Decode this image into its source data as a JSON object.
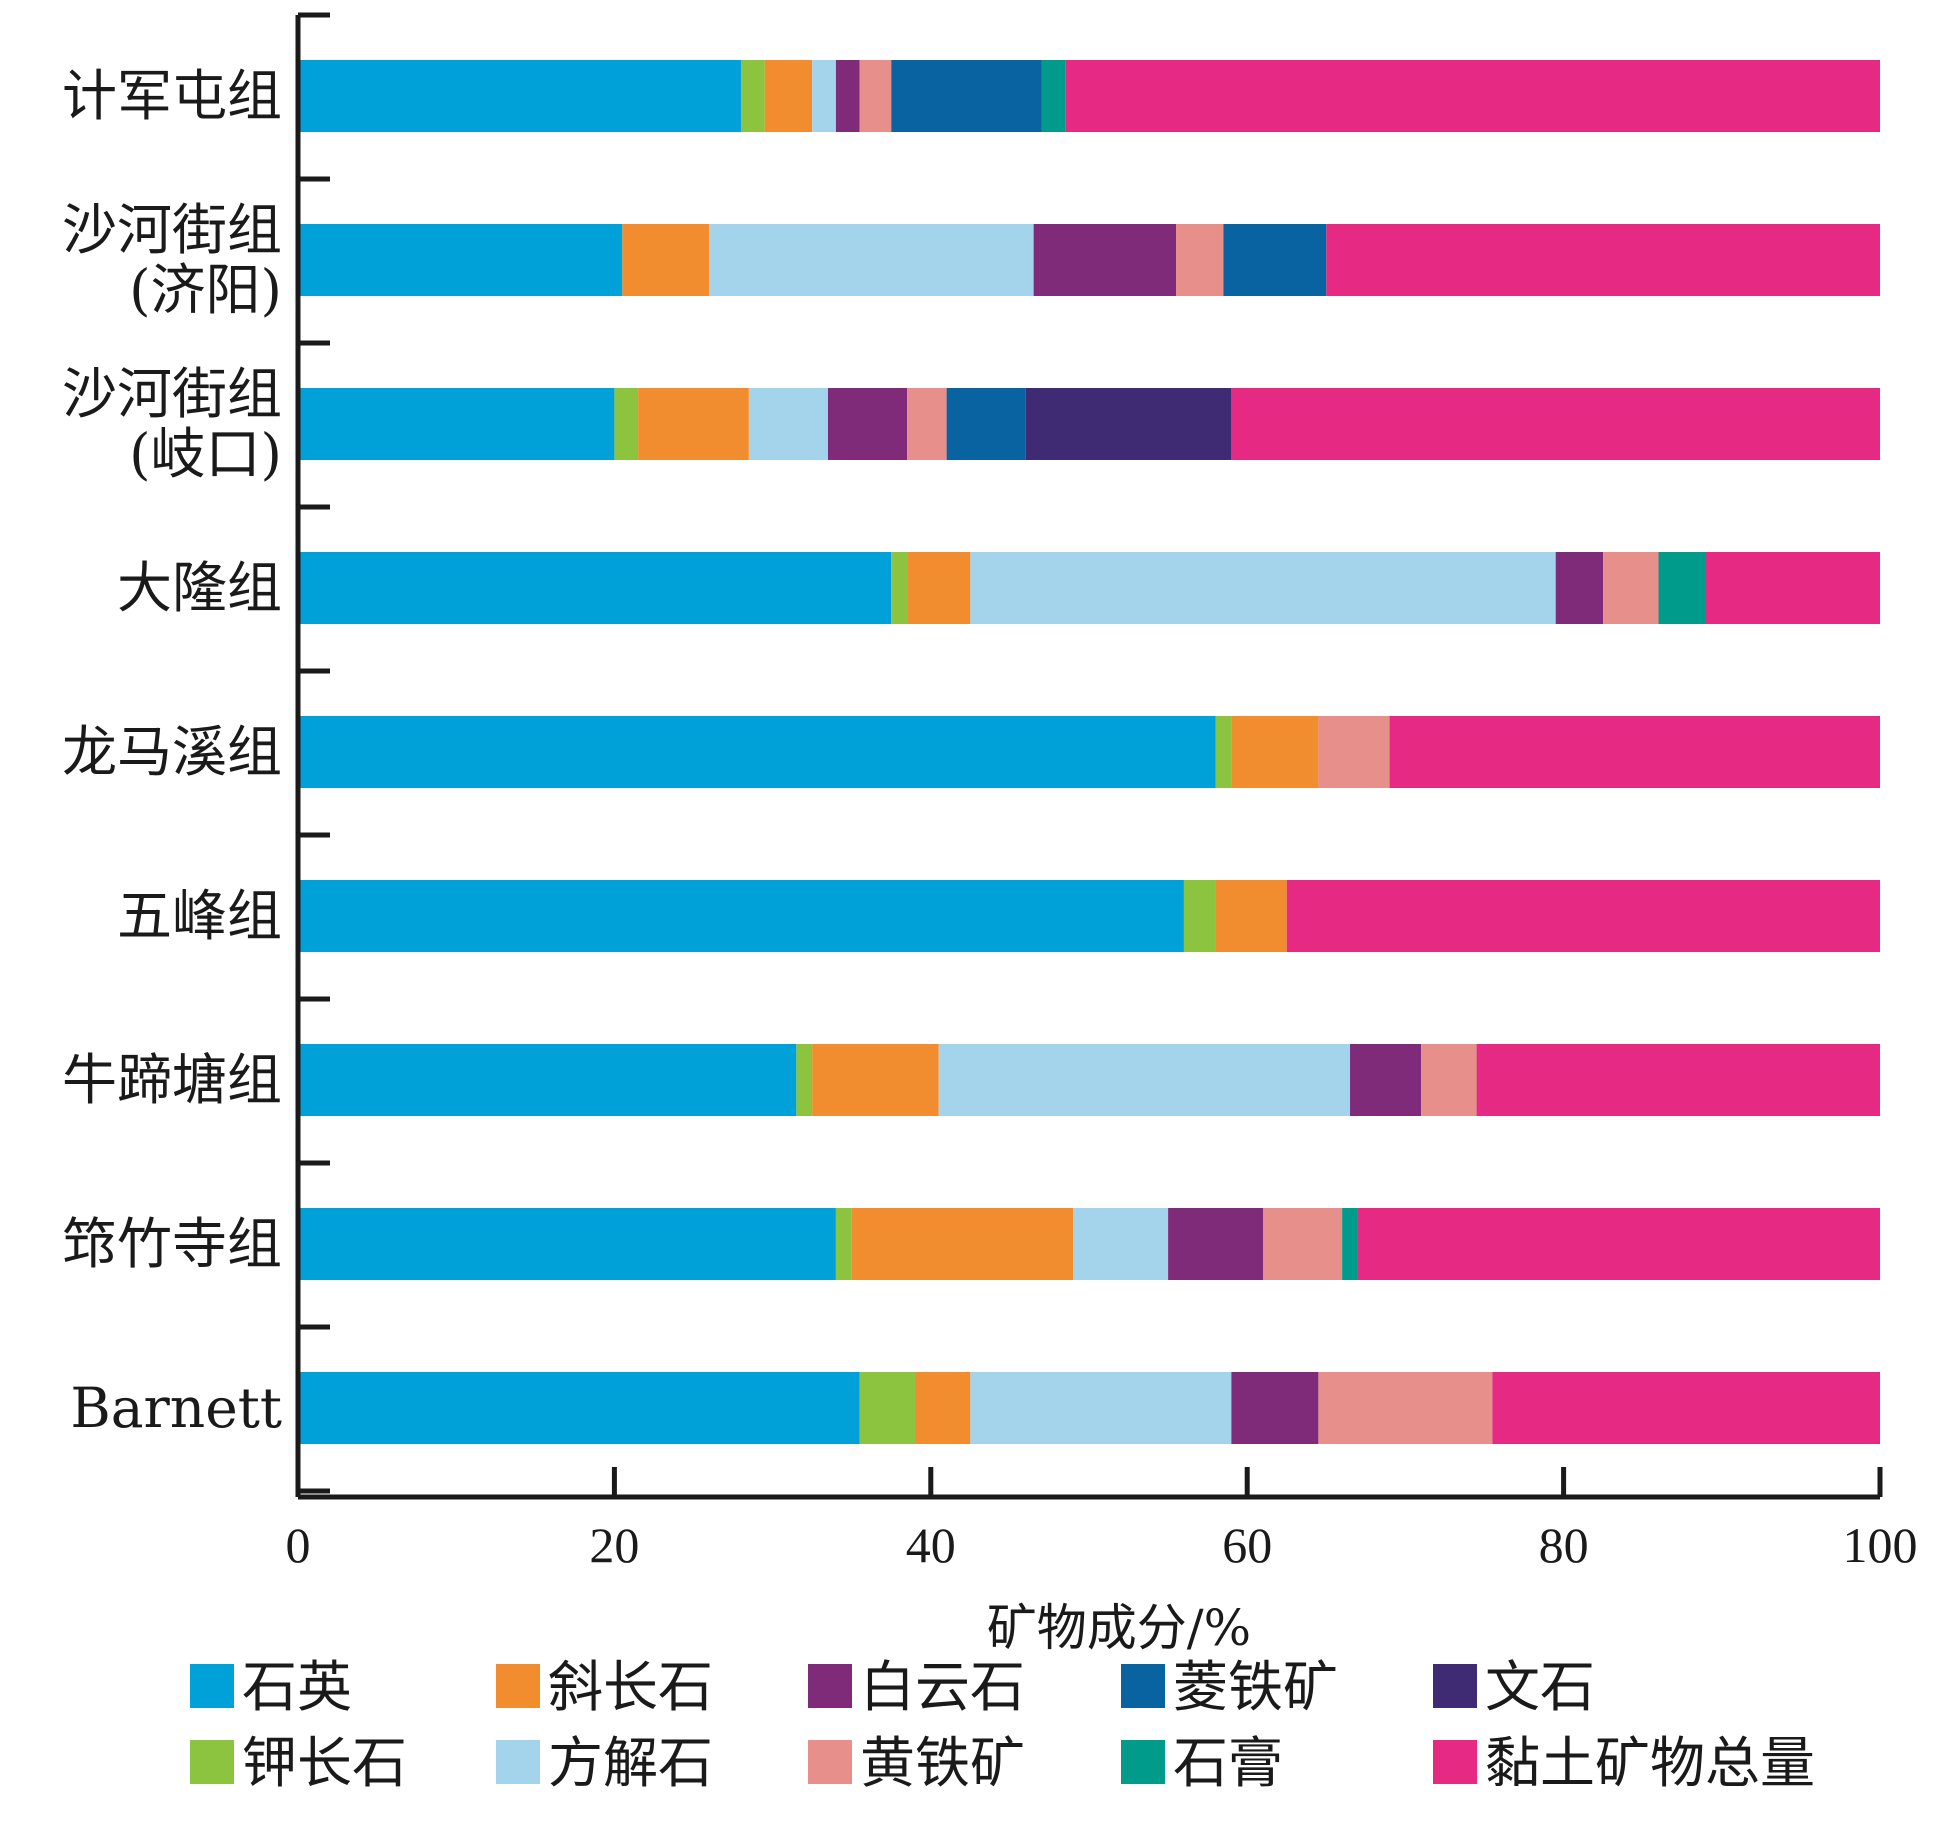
{
  "chart_data": {
    "type": "bar",
    "orientation": "horizontal",
    "stacked": true,
    "categories": [
      "计军屯组",
      "沙河街组\n(济阳)",
      "沙河街组\n(岐口)",
      "大隆组",
      "龙马溪组",
      "五峰组",
      "牛蹄塘组",
      "筇竹寺组",
      "Barnett"
    ],
    "series": [
      {
        "name": "石英",
        "color": "#00a0d9",
        "values": [
          28.0,
          20.5,
          20.0,
          37.5,
          58.0,
          56.0,
          31.5,
          34.0,
          35.5
        ]
      },
      {
        "name": "钾长石",
        "color": "#8cc43f",
        "values": [
          1.5,
          0,
          1.5,
          1.0,
          1.0,
          2.0,
          1.0,
          1.0,
          3.5
        ]
      },
      {
        "name": "斜长石",
        "color": "#f18d2e",
        "values": [
          3.0,
          5.5,
          7.0,
          4.0,
          5.5,
          4.5,
          8.0,
          14.0,
          3.5
        ]
      },
      {
        "name": "方解石",
        "color": "#a4d4ec",
        "values": [
          1.5,
          20.5,
          5.0,
          37.0,
          0,
          0,
          26.0,
          6.0,
          16.5
        ]
      },
      {
        "name": "白云石",
        "color": "#7f2b79",
        "values": [
          1.5,
          9.0,
          5.0,
          3.0,
          0,
          0,
          4.5,
          6.0,
          5.5
        ]
      },
      {
        "name": "黄铁矿",
        "color": "#e78f8b",
        "values": [
          2.0,
          3.0,
          2.5,
          3.5,
          4.5,
          0,
          3.5,
          5.0,
          11.0
        ]
      },
      {
        "name": "菱铁矿",
        "color": "#0a63a1",
        "values": [
          9.5,
          6.5,
          5.0,
          0,
          0,
          0,
          0,
          0,
          0
        ]
      },
      {
        "name": "文石",
        "color": "#3f2a74",
        "values": [
          0,
          0,
          13.0,
          0,
          0,
          0,
          0,
          0,
          0
        ]
      },
      {
        "name": "石膏",
        "color": "#009b8b",
        "values": [
          1.5,
          0,
          0,
          3.0,
          0,
          0,
          0,
          1.0,
          0
        ]
      },
      {
        "name": "黏土矿物总量",
        "color": "#e62a84",
        "values": [
          51.5,
          35.0,
          41.0,
          11.0,
          31.0,
          37.5,
          25.5,
          33.0,
          24.5
        ]
      }
    ],
    "legend_order": [
      "石英",
      "斜长石",
      "白云石",
      "菱铁矿",
      "文石",
      "钾长石",
      "方解石",
      "黄铁矿",
      "石膏",
      "黏土矿物总量"
    ],
    "xlabel": "矿物成分/%",
    "xticks": [
      "0",
      "20",
      "40",
      "60",
      "80",
      "100"
    ],
    "xlim": [
      0,
      100
    ],
    "grid": false,
    "legend_position": "bottom"
  }
}
